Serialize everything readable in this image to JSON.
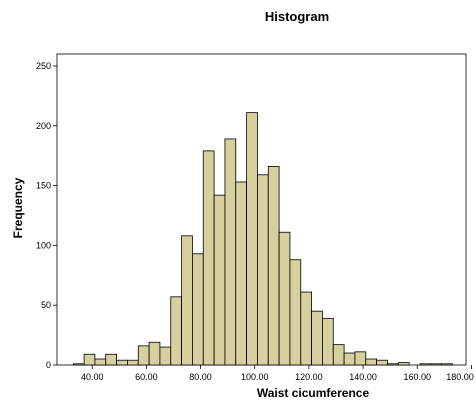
{
  "chart_data": {
    "type": "bar",
    "title": "Histogram",
    "xlabel": "Waist cicumference",
    "ylabel": "Frequency",
    "bar_color": "#d6cf9e",
    "bin_width": 4,
    "xlim": [
      27,
      178
    ],
    "ylim": [
      0,
      260
    ],
    "x_ticks": [
      "40.00",
      "60.00",
      "80.00",
      "100.00",
      "120.00",
      "140.00",
      "160.00",
      "180.00"
    ],
    "x_tick_values": [
      40,
      60,
      80,
      100,
      120,
      140,
      160,
      180
    ],
    "y_ticks": [
      0,
      50,
      100,
      150,
      200,
      250
    ],
    "bins": [
      {
        "x0": 33,
        "value": 1
      },
      {
        "x0": 37,
        "value": 9
      },
      {
        "x0": 41,
        "value": 5
      },
      {
        "x0": 45,
        "value": 9
      },
      {
        "x0": 49,
        "value": 4
      },
      {
        "x0": 53,
        "value": 4
      },
      {
        "x0": 57,
        "value": 16
      },
      {
        "x0": 61,
        "value": 19
      },
      {
        "x0": 65,
        "value": 15
      },
      {
        "x0": 69,
        "value": 57
      },
      {
        "x0": 73,
        "value": 108
      },
      {
        "x0": 77,
        "value": 93
      },
      {
        "x0": 81,
        "value": 179
      },
      {
        "x0": 85,
        "value": 142
      },
      {
        "x0": 89,
        "value": 189
      },
      {
        "x0": 93,
        "value": 153
      },
      {
        "x0": 97,
        "value": 211
      },
      {
        "x0": 101,
        "value": 159
      },
      {
        "x0": 105,
        "value": 166
      },
      {
        "x0": 109,
        "value": 111
      },
      {
        "x0": 113,
        "value": 88
      },
      {
        "x0": 117,
        "value": 61
      },
      {
        "x0": 121,
        "value": 45
      },
      {
        "x0": 125,
        "value": 39
      },
      {
        "x0": 129,
        "value": 17
      },
      {
        "x0": 133,
        "value": 10
      },
      {
        "x0": 137,
        "value": 11
      },
      {
        "x0": 141,
        "value": 5
      },
      {
        "x0": 145,
        "value": 4
      },
      {
        "x0": 149,
        "value": 1
      },
      {
        "x0": 153,
        "value": 2
      },
      {
        "x0": 157,
        "value": 0
      },
      {
        "x0": 161,
        "value": 1
      },
      {
        "x0": 165,
        "value": 1
      },
      {
        "x0": 169,
        "value": 1
      }
    ]
  }
}
